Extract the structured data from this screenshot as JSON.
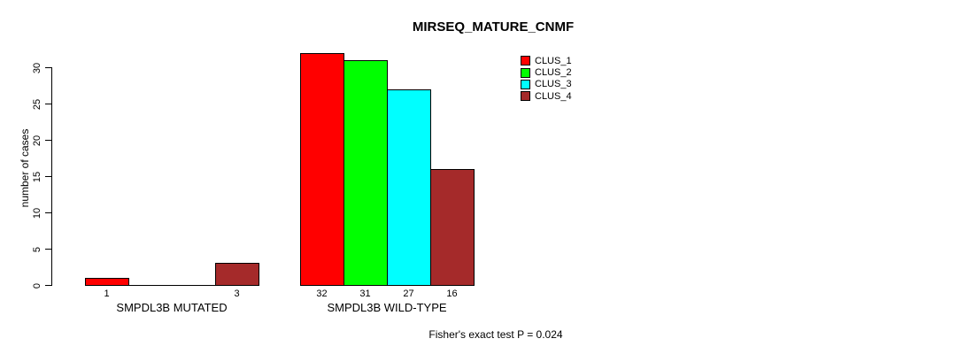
{
  "chart_data": {
    "type": "bar",
    "title": "MIRSEQ_MATURE_CNMF",
    "ylabel": "number of cases",
    "xlabel": "",
    "ylim": [
      0,
      32
    ],
    "yticks": [
      0,
      5,
      10,
      15,
      20,
      25,
      30
    ],
    "grid": false,
    "legend_position": "top-right",
    "categories": [
      "SMPDL3B MUTATED",
      "SMPDL3B WILD-TYPE"
    ],
    "series": [
      {
        "name": "CLUS_1",
        "color": "#ff0000",
        "values": [
          1,
          32
        ]
      },
      {
        "name": "CLUS_2",
        "color": "#00ff00",
        "values": [
          0,
          31
        ]
      },
      {
        "name": "CLUS_3",
        "color": "#00ffff",
        "values": [
          0,
          27
        ]
      },
      {
        "name": "CLUS_4",
        "color": "#a52a2a",
        "values": [
          3,
          16
        ]
      }
    ],
    "bar_value_labels": [
      [
        "1",
        "",
        "",
        "3"
      ],
      [
        "32",
        "31",
        "27",
        "16"
      ]
    ],
    "footnote": "Fisher's exact test P = 0.024"
  }
}
